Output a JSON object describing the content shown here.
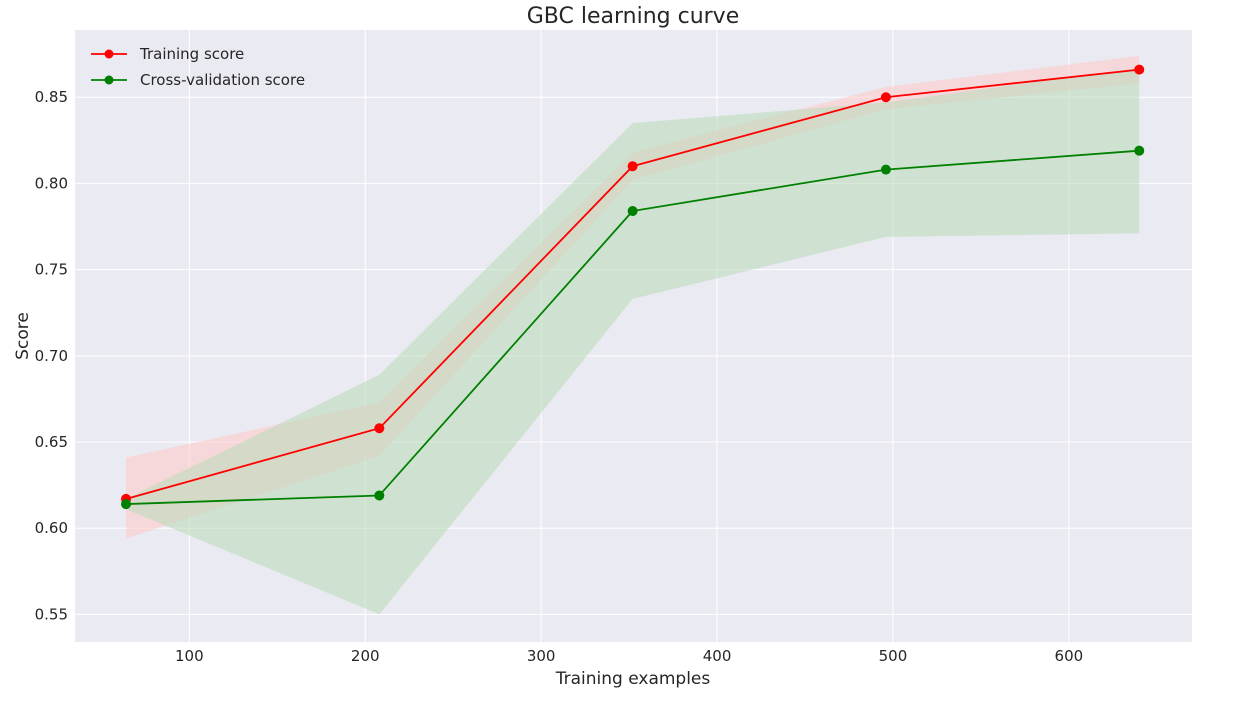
{
  "chart_data": {
    "type": "line",
    "title": "GBC learning curve",
    "xlabel": "Training examples",
    "ylabel": "Score",
    "xlim": [
      35,
      670
    ],
    "ylim": [
      0.534,
      0.889
    ],
    "xticks": [
      100,
      200,
      300,
      400,
      500,
      600
    ],
    "xtick_labels": [
      "100",
      "200",
      "300",
      "400",
      "500",
      "600"
    ],
    "yticks": [
      0.55,
      0.6,
      0.65,
      0.7,
      0.75,
      0.8,
      0.85
    ],
    "ytick_labels": [
      "0.55",
      "0.60",
      "0.65",
      "0.70",
      "0.75",
      "0.80",
      "0.85"
    ],
    "grid": true,
    "legend_position": "upper-left",
    "x": [
      64,
      208,
      352,
      496,
      640
    ],
    "series": [
      {
        "name": "Training score",
        "color": "#ff0000",
        "values": [
          0.617,
          0.658,
          0.81,
          0.85,
          0.866
        ],
        "band_lower": [
          0.594,
          0.642,
          0.802,
          0.843,
          0.858
        ],
        "band_upper": [
          0.641,
          0.673,
          0.818,
          0.856,
          0.874
        ]
      },
      {
        "name": "Cross-validation score",
        "color": "#008000",
        "values": [
          0.614,
          0.619,
          0.784,
          0.808,
          0.819
        ],
        "band_lower": [
          0.611,
          0.55,
          0.733,
          0.769,
          0.771
        ],
        "band_upper": [
          0.617,
          0.689,
          0.835,
          0.847,
          0.867
        ]
      }
    ],
    "colors": {
      "plot_background": "#eaeaf2",
      "grid": "#ffffff",
      "training_band": "#ffc8c8",
      "cv_band": "#b8dab8"
    }
  }
}
